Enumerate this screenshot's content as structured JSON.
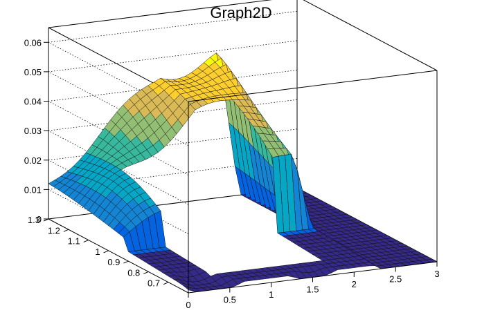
{
  "chart_data": {
    "type": "surface3d",
    "title": "Graph2D",
    "xlabel": "",
    "ylabel": "",
    "zlabel": "",
    "x_range": [
      0,
      3
    ],
    "y_range": [
      0.6,
      1.3
    ],
    "z_range": [
      0,
      0.065
    ],
    "x_ticks": [
      0,
      0.5,
      1,
      1.5,
      2,
      2.5,
      3
    ],
    "x_tick_labels": [
      "0",
      "0.5",
      "1",
      "1.5",
      "2",
      "2.5",
      "3"
    ],
    "y_ticks": [
      0.7,
      0.8,
      0.9,
      1.0,
      1.1,
      1.2,
      1.3
    ],
    "y_tick_labels": [
      "0.7",
      "0.8",
      "0.9",
      "1",
      "1.1",
      "1.2",
      "1.3"
    ],
    "z_ticks": [
      0,
      0.01,
      0.02,
      0.03,
      0.04,
      0.05,
      0.06
    ],
    "z_tick_labels": [
      "0",
      "0.01",
      "0.02",
      "0.03",
      "0.04",
      "0.05",
      "0.06"
    ],
    "grid": true,
    "palette": "kBird",
    "surface": {
      "x_min": 0,
      "x_max": 3,
      "nx": 40,
      "y_min": 0.6,
      "y_max": 1.3,
      "ny": 28,
      "window_x": [
        0.45,
        1.8
      ],
      "window_y": [
        0.68,
        1.13
      ],
      "ridge_z_back_left": 0.012,
      "ridge_z_peak": 0.044,
      "ridge_z_back_right": 0.045,
      "corner_z": 0.001,
      "palette_colors": [
        "#352a87",
        "#0363e1",
        "#1485d4",
        "#06a7c6",
        "#38b99e",
        "#92bf73",
        "#d9ba56",
        "#fcce2e",
        "#f9fb0e"
      ]
    }
  }
}
